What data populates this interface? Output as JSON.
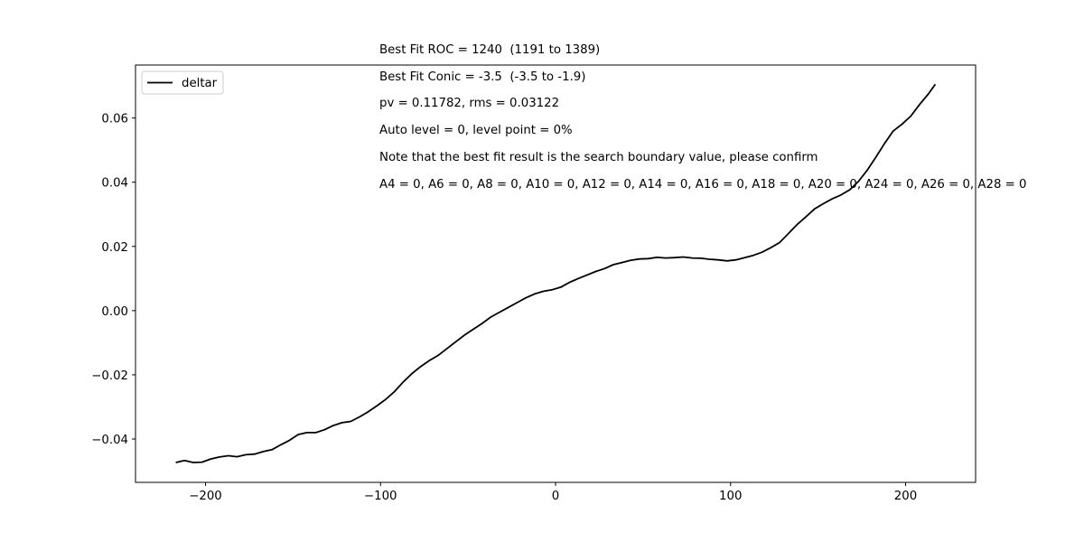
{
  "chart_data": {
    "type": "line",
    "title": "",
    "xlabel": "",
    "ylabel": "",
    "xlim": [
      -240,
      240
    ],
    "ylim": [
      -0.0535,
      0.0765
    ],
    "xticks": [
      -200,
      -100,
      0,
      100,
      200
    ],
    "xtick_labels": [
      "−200",
      "−100",
      "0",
      "100",
      "200"
    ],
    "yticks": [
      -0.04,
      -0.02,
      0.0,
      0.02,
      0.04,
      0.06
    ],
    "ytick_labels": [
      "−0.04",
      "−0.02",
      "0.00",
      "0.02",
      "0.04",
      "0.06"
    ],
    "grid": false,
    "legend": {
      "position": "top-left",
      "entries": [
        "deltar"
      ]
    },
    "series": [
      {
        "name": "deltar",
        "color": "#000000",
        "x": [
          -217,
          -212,
          -207,
          -202,
          -197,
          -192,
          -187,
          -182,
          -177,
          -172,
          -167,
          -162,
          -157,
          -152,
          -147,
          -142,
          -137,
          -132,
          -127,
          -122,
          -117,
          -112,
          -107,
          -102,
          -97,
          -92,
          -87,
          -82,
          -77,
          -72,
          -67,
          -62,
          -57,
          -52,
          -47,
          -42,
          -37,
          -32,
          -27,
          -22,
          -17,
          -12,
          -7,
          -2,
          3,
          8,
          13,
          18,
          23,
          28,
          33,
          38,
          43,
          48,
          53,
          58,
          63,
          68,
          73,
          78,
          83,
          88,
          93,
          98,
          103,
          108,
          113,
          118,
          123,
          128,
          133,
          138,
          143,
          148,
          153,
          158,
          163,
          168,
          173,
          178,
          183,
          188,
          193,
          198,
          203,
          208,
          213,
          217
        ],
        "values": [
          -0.0473,
          -0.0467,
          -0.0473,
          -0.0472,
          -0.0462,
          -0.0456,
          -0.0452,
          -0.0455,
          -0.0449,
          -0.0447,
          -0.0439,
          -0.0433,
          -0.0418,
          -0.0404,
          -0.0386,
          -0.038,
          -0.038,
          -0.0371,
          -0.0358,
          -0.0349,
          -0.0345,
          -0.0331,
          -0.0315,
          -0.0296,
          -0.0276,
          -0.0252,
          -0.0222,
          -0.0196,
          -0.0174,
          -0.0155,
          -0.0139,
          -0.0118,
          -0.0097,
          -0.0076,
          -0.0058,
          -0.004,
          -0.002,
          -0.0005,
          0.001,
          0.0025,
          0.004,
          0.0052,
          0.006,
          0.0065,
          0.0073,
          0.0088,
          0.01,
          0.0111,
          0.0122,
          0.0131,
          0.0143,
          0.015,
          0.0157,
          0.0161,
          0.0162,
          0.0166,
          0.0164,
          0.0165,
          0.0167,
          0.0164,
          0.0163,
          0.016,
          0.0158,
          0.0155,
          0.0158,
          0.0165,
          0.0172,
          0.0182,
          0.0196,
          0.0212,
          0.024,
          0.0268,
          0.0292,
          0.0317,
          0.0333,
          0.0348,
          0.036,
          0.0376,
          0.0402,
          0.0437,
          0.0478,
          0.0521,
          0.056,
          0.0581,
          0.0606,
          0.0642,
          0.0675,
          0.0705
        ]
      }
    ]
  },
  "annotations": [
    "Best Fit ROC = 1240  (1191 to 1389)",
    "Best Fit Conic = -3.5  (-3.5 to -1.9)",
    "pv = 0.11782, rms = 0.03122",
    "Auto level = 0, level point = 0%",
    "Note that the best fit result is the search boundary value, please confirm",
    "A4 = 0, A6 = 0, A8 = 0, A10 = 0, A12 = 0, A14 = 0, A16 = 0, A18 = 0, A20 = 0, A24 = 0, A26 = 0, A28 = 0"
  ]
}
